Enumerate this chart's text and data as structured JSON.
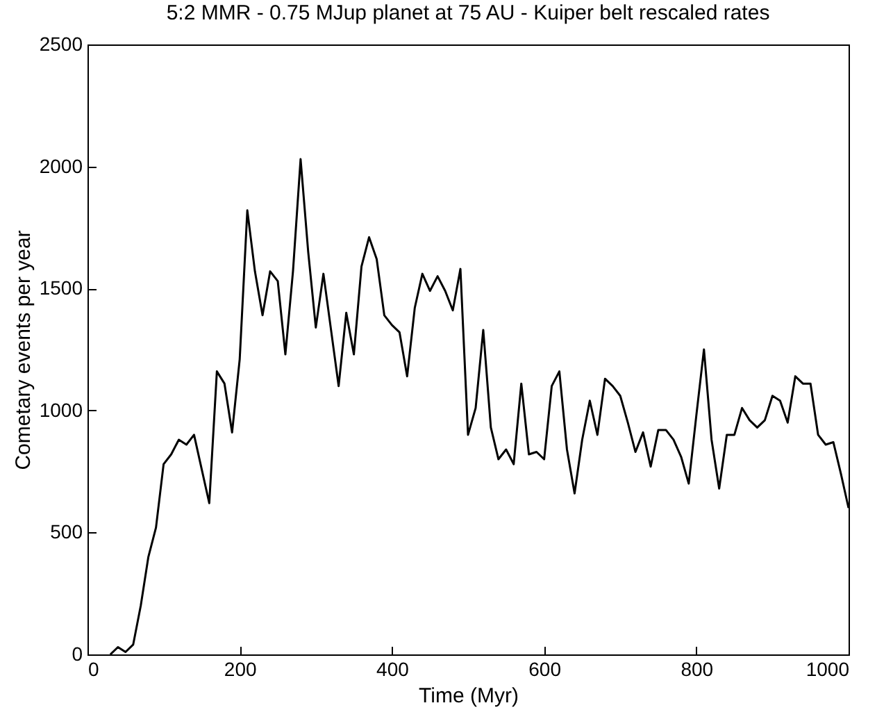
{
  "chart_data": {
    "type": "line",
    "title": "5:2 MMR - 0.75 MJup planet at 75 AU - Kuiper belt rescaled rates",
    "xlabel": "Time (Myr)",
    "ylabel": "Cometary events per year",
    "x": [
      30,
      40,
      50,
      60,
      70,
      80,
      90,
      100,
      110,
      120,
      130,
      140,
      150,
      160,
      170,
      180,
      190,
      200,
      210,
      220,
      230,
      240,
      250,
      260,
      270,
      280,
      290,
      300,
      310,
      320,
      330,
      340,
      350,
      360,
      370,
      380,
      390,
      400,
      410,
      420,
      430,
      440,
      450,
      460,
      470,
      480,
      490,
      500,
      510,
      520,
      530,
      540,
      550,
      560,
      570,
      580,
      590,
      600,
      610,
      620,
      630,
      640,
      650,
      660,
      670,
      680,
      690,
      700,
      710,
      720,
      730,
      740,
      750,
      760,
      770,
      780,
      790,
      800,
      810,
      820,
      830,
      840,
      850,
      860,
      870,
      880,
      890,
      900,
      910,
      920,
      930,
      940,
      950,
      960,
      970,
      980,
      990,
      1000
    ],
    "series": [
      {
        "color": "#000000",
        "values": [
          0,
          30,
          10,
          40,
          200,
          400,
          520,
          780,
          820,
          880,
          860,
          900,
          760,
          620,
          1160,
          1110,
          910,
          1210,
          1820,
          1570,
          1390,
          1570,
          1530,
          1230,
          1570,
          2030,
          1650,
          1340,
          1560,
          1330,
          1100,
          1400,
          1230,
          1590,
          1710,
          1620,
          1390,
          1350,
          1320,
          1140,
          1420,
          1560,
          1490,
          1550,
          1490,
          1410,
          1580,
          900,
          1010,
          1330,
          930,
          800,
          840,
          780,
          1110,
          820,
          830,
          800,
          1100,
          1160,
          840,
          660,
          880,
          1040,
          900,
          1130,
          1100,
          1060,
          950,
          830,
          910,
          770,
          920,
          920,
          880,
          810,
          700,
          980,
          1250,
          880,
          680,
          900,
          900,
          1010,
          960,
          930,
          960,
          1060,
          1040,
          950,
          1140,
          1110,
          1110,
          900,
          860,
          870,
          740,
          600
        ]
      }
    ],
    "xlim": [
      0,
      1000
    ],
    "xticks": [
      0,
      200,
      400,
      600,
      800,
      1000
    ],
    "ylim": [
      0,
      2500
    ],
    "yticks": [
      0,
      500,
      1000,
      1500,
      2000,
      2500
    ],
    "line_style": "solid",
    "grid": false
  }
}
